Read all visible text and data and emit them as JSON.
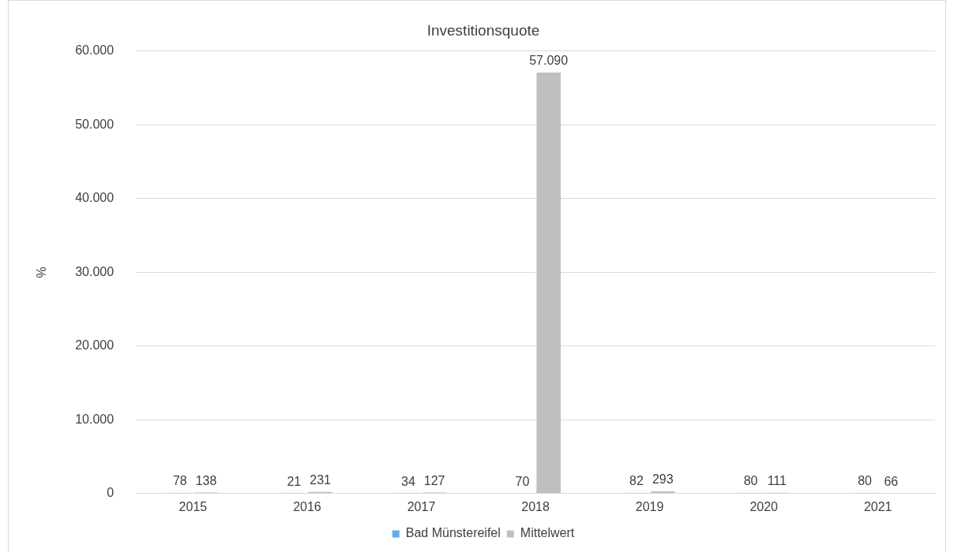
{
  "chart_data": {
    "type": "bar",
    "title": "Investitionsquote",
    "ylabel": "%",
    "categories": [
      "2015",
      "2016",
      "2017",
      "2018",
      "2019",
      "2020",
      "2021"
    ],
    "series": [
      {
        "name": "Bad Münstereifel",
        "color": "#5eaef0",
        "values": [
          78,
          21,
          34,
          70,
          82,
          80,
          80
        ],
        "value_labels": [
          "78",
          "21",
          "34",
          "70",
          "82",
          "80",
          "80"
        ]
      },
      {
        "name": "Mittelwert",
        "color": "#bfbfbf",
        "values": [
          138,
          231,
          127,
          57090,
          293,
          111,
          66
        ],
        "value_labels": [
          "138",
          "231",
          "127",
          "57.090",
          "293",
          "111",
          "66"
        ]
      }
    ],
    "ylim": [
      0,
      60000
    ],
    "yticks": [
      {
        "value": 0,
        "label": "0"
      },
      {
        "value": 10000,
        "label": "10.000"
      },
      {
        "value": 20000,
        "label": "20.000"
      },
      {
        "value": 30000,
        "label": "30.000"
      },
      {
        "value": 40000,
        "label": "40.000"
      },
      {
        "value": 50000,
        "label": "50.000"
      },
      {
        "value": 60000,
        "label": "60.000"
      }
    ],
    "grid": "y",
    "legend": "bottom"
  }
}
